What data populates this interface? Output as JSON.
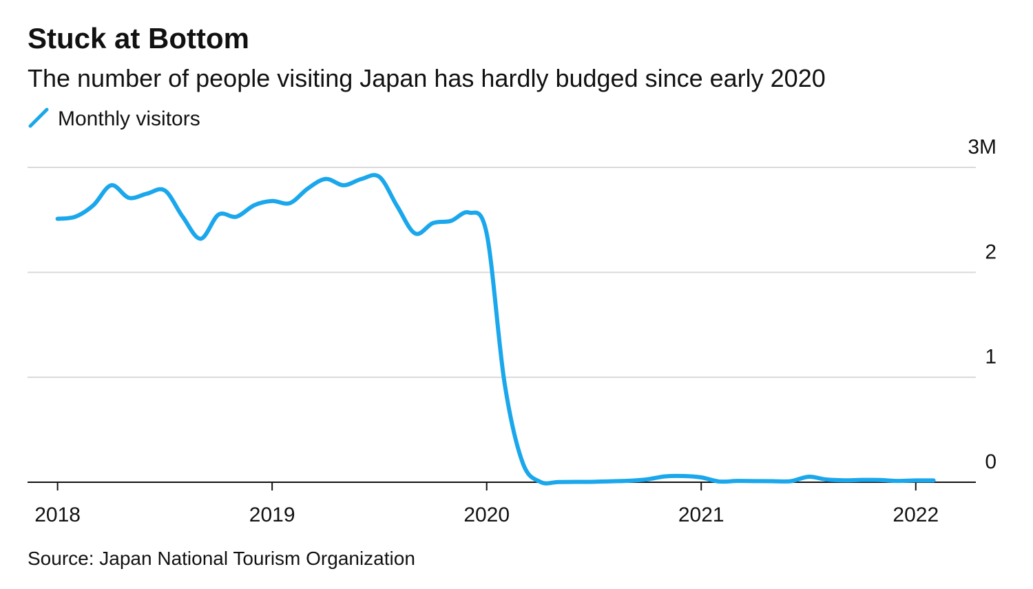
{
  "chart_data": {
    "type": "line",
    "title": "Stuck at Bottom",
    "subtitle": "The number of people visiting Japan has hardly budged since early 2020",
    "source": "Source: Japan National Tourism Organization",
    "x": [
      2018,
      2018.083,
      2018.167,
      2018.25,
      2018.333,
      2018.417,
      2018.5,
      2018.583,
      2018.667,
      2018.75,
      2018.833,
      2018.917,
      2019,
      2019.083,
      2019.167,
      2019.25,
      2019.333,
      2019.417,
      2019.5,
      2019.583,
      2019.667,
      2019.75,
      2019.833,
      2019.917,
      2020,
      2020.083,
      2020.167,
      2020.25,
      2020.333,
      2020.417,
      2020.5,
      2020.583,
      2020.667,
      2020.75,
      2020.833,
      2020.917,
      2021,
      2021.083,
      2021.167,
      2021.25,
      2021.333,
      2021.417,
      2021.5,
      2021.583,
      2021.667,
      2021.75,
      2021.833,
      2021.917,
      2022,
      2022.083
    ],
    "series": [
      {
        "name": "Monthly visitors",
        "color": "#1aa7ec",
        "values": [
          2.51,
          2.53,
          2.64,
          2.83,
          2.71,
          2.75,
          2.78,
          2.53,
          2.32,
          2.55,
          2.53,
          2.64,
          2.68,
          2.66,
          2.8,
          2.89,
          2.83,
          2.89,
          2.91,
          2.63,
          2.37,
          2.47,
          2.49,
          2.57,
          2.37,
          0.95,
          0.19,
          0.003,
          0.002,
          0.003,
          0.004,
          0.009,
          0.014,
          0.028,
          0.056,
          0.059,
          0.046,
          0.007,
          0.012,
          0.011,
          0.01,
          0.01,
          0.052,
          0.026,
          0.018,
          0.022,
          0.021,
          0.012,
          0.017,
          0.017
        ]
      }
    ],
    "xlim": [
      2017.86,
      2022.28
    ],
    "xticks": [
      2018,
      2019,
      2020,
      2021,
      2022
    ],
    "ylim": [
      0,
      3.3
    ],
    "yticks": [
      0,
      1,
      2,
      {
        "value": 3,
        "label": "3M"
      }
    ],
    "grid": true
  }
}
